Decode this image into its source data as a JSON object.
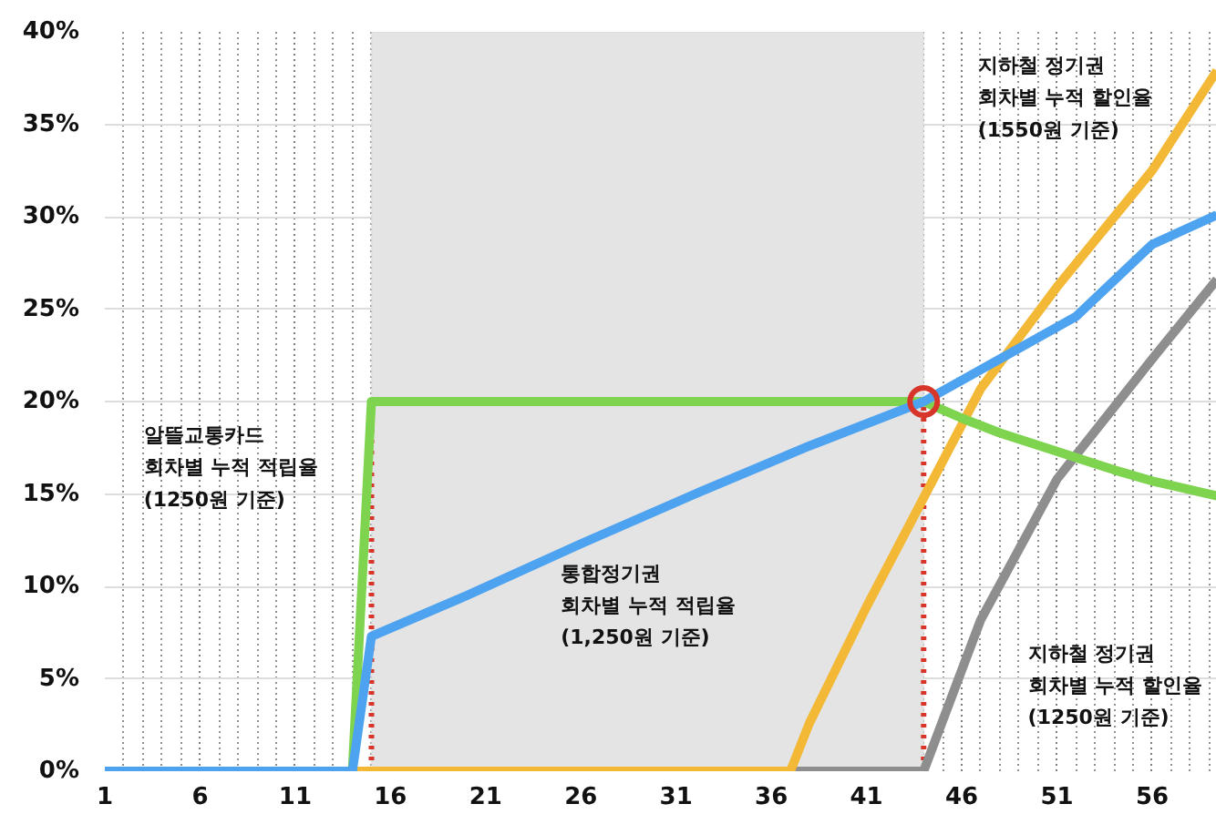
{
  "chart_data": {
    "type": "line",
    "xlim": [
      1,
      59.4
    ],
    "ylim": [
      0,
      40
    ],
    "xticks": [
      1,
      6,
      11,
      16,
      21,
      26,
      31,
      36,
      41,
      46,
      51,
      56
    ],
    "yticks": [
      {
        "value": 0,
        "label": "0%"
      },
      {
        "value": 5,
        "label": "5%"
      },
      {
        "value": 10,
        "label": "10%"
      },
      {
        "value": 15,
        "label": "15%"
      },
      {
        "value": 20,
        "label": "20%"
      },
      {
        "value": 25,
        "label": "25%"
      },
      {
        "value": 30,
        "label": "30%"
      },
      {
        "value": 35,
        "label": "35%"
      },
      {
        "value": 40,
        "label": "40%"
      }
    ],
    "grid": true,
    "marker": "none",
    "line_style": "solid",
    "bands": [
      {
        "axis": "x",
        "from": 15,
        "to": 44,
        "label": null,
        "color": "#e4e4e4"
      }
    ],
    "ref_lines": [
      {
        "axis": "x",
        "value": 15,
        "label": null,
        "color": "#d8352a",
        "line_style": "dotted"
      },
      {
        "axis": "x",
        "value": 44,
        "label": null,
        "color": "#d8352a",
        "line_style": "dotted"
      }
    ],
    "series": [
      {
        "color": "#8e8e8e",
        "x": [
          1,
          44,
          47,
          51,
          56,
          59.4
        ],
        "values": [
          0,
          0,
          8.2,
          15.8,
          22.3,
          26.6
        ]
      },
      {
        "color": "#f2b836",
        "x": [
          1,
          37,
          38,
          41,
          44,
          47,
          51,
          56,
          59.4
        ],
        "values": [
          0,
          0,
          2.6,
          8.9,
          14.8,
          20.7,
          26.2,
          32.5,
          37.9
        ]
      },
      {
        "color": "#7ed44f",
        "x": [
          1,
          14,
          15,
          44,
          46,
          48,
          51,
          54,
          56,
          59.4
        ],
        "values": [
          0,
          0,
          20,
          20,
          19.1,
          18.3,
          17.3,
          16.3,
          15.7,
          14.9
        ]
      },
      {
        "color": "#4ea3f0",
        "x": [
          1,
          14,
          15,
          20,
          26,
          32,
          38,
          44,
          52,
          56,
          59.4
        ],
        "values": [
          0,
          0,
          7.3,
          9.5,
          12.3,
          15,
          17.6,
          20,
          24.6,
          28.5,
          30.1
        ]
      },
      {
        "type": "scatter",
        "marker": "circle",
        "color": "#d8352a",
        "x": [
          44
        ],
        "values": [
          20
        ]
      }
    ],
    "annotations": [
      "알뜰교통카드\n회차별 누적 적립율\n(1250원 기준)",
      "통합정기권\n회차별 누적 적립율\n(1,250원 기준)",
      "지하철 정기권\n회차별 누적 할인율\n(1550원 기준)",
      "지하철 정기권\n회차별 누적 할인율\n(1250원 기준)"
    ]
  }
}
